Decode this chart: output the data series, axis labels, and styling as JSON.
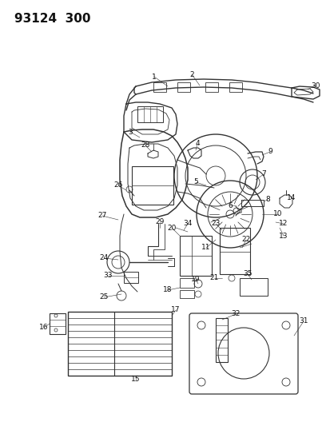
{
  "title": "93124  300",
  "bg_color": "#ffffff",
  "line_color": "#333333",
  "text_color": "#111111",
  "title_fontsize": 11,
  "label_fontsize": 6.5,
  "figsize": [
    4.14,
    5.33
  ],
  "dpi": 100
}
